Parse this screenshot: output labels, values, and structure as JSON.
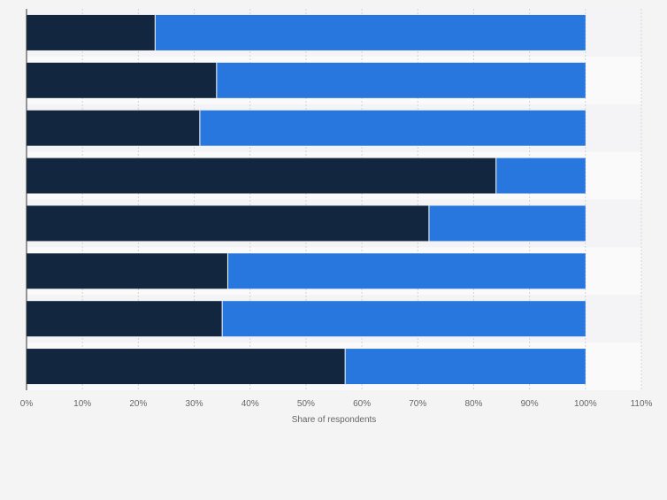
{
  "chart_data": {
    "type": "bar",
    "orientation": "horizontal",
    "stacked": true,
    "title": "",
    "xlabel": "Share of respondents",
    "ylabel": "",
    "xlim": [
      0,
      110
    ],
    "ticks": [
      "0%",
      "10%",
      "20%",
      "30%",
      "40%",
      "50%",
      "60%",
      "70%",
      "80%",
      "90%",
      "100%",
      "110%"
    ],
    "grid": "vertical dashed",
    "legend": "none",
    "categories": [
      "",
      "",
      "",
      "",
      "",
      "",
      "",
      ""
    ],
    "series": [
      {
        "values": [
          23,
          34,
          31,
          84,
          72,
          36,
          35,
          57
        ]
      },
      {
        "values": [
          77,
          66,
          69,
          16,
          28,
          64,
          65,
          43
        ]
      }
    ],
    "colors": [
      "#13263f",
      "#2877de"
    ]
  }
}
